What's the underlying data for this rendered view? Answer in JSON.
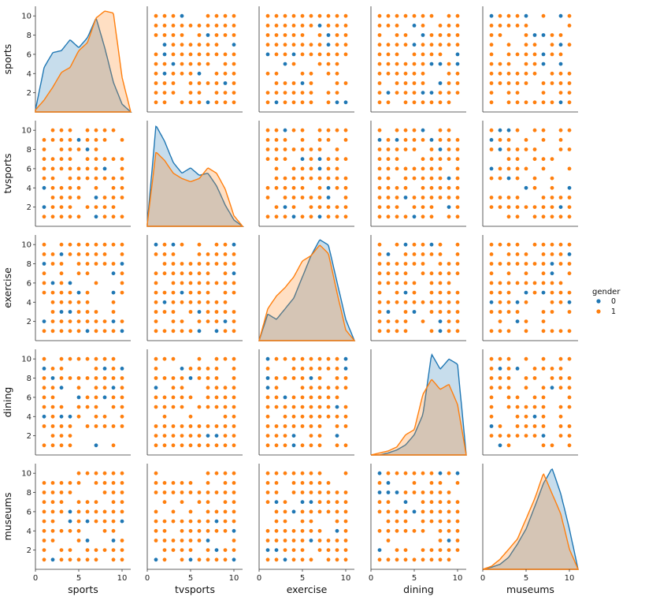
{
  "chart_data": {
    "type": "scatter",
    "title": "",
    "variables": [
      "sports",
      "tvsports",
      "exercise",
      "dining",
      "museums"
    ],
    "axis_range": [
      0,
      11
    ],
    "ticks": [
      0,
      5,
      10
    ],
    "y_ticks": [
      2,
      4,
      6,
      8,
      10
    ],
    "hue": "gender",
    "colors": {
      "0": "#1f77b4",
      "1": "#ff7f0e"
    },
    "legend": {
      "title": "gender",
      "placement": "center-right",
      "entries": [
        {
          "label": "0",
          "color": "#1f77b4"
        },
        {
          "label": "1",
          "color": "#ff7f0e"
        }
      ]
    },
    "diagonal_kde": {
      "sports": {
        "x": [
          0,
          1,
          2,
          3,
          4,
          5,
          6,
          7,
          8,
          9,
          10,
          11
        ],
        "series": [
          {
            "name": "0",
            "values": [
              0.02,
              0.45,
              0.6,
              0.62,
              0.73,
              0.65,
              0.75,
              0.95,
              0.65,
              0.3,
              0.08,
              0
            ]
          },
          {
            "name": "1",
            "values": [
              0.02,
              0.12,
              0.25,
              0.4,
              0.45,
              0.62,
              0.7,
              0.95,
              1.02,
              1.0,
              0.35,
              0
            ]
          }
        ]
      },
      "tvsports": {
        "x": [
          0,
          1,
          2,
          3,
          4,
          5,
          6,
          7,
          8,
          9,
          10,
          11
        ],
        "series": [
          {
            "name": "0",
            "values": [
              0.02,
              0.95,
              0.8,
              0.6,
              0.5,
              0.55,
              0.48,
              0.5,
              0.38,
              0.2,
              0.06,
              0
            ]
          },
          {
            "name": "1",
            "values": [
              0.02,
              0.7,
              0.62,
              0.5,
              0.45,
              0.42,
              0.45,
              0.55,
              0.5,
              0.35,
              0.1,
              0
            ]
          }
        ]
      },
      "exercise": {
        "x": [
          0,
          1,
          2,
          3,
          4,
          5,
          6,
          7,
          8,
          9,
          10,
          11
        ],
        "series": [
          {
            "name": "0",
            "values": [
              0,
              0.25,
              0.2,
              0.3,
              0.4,
              0.6,
              0.8,
              0.95,
              0.9,
              0.55,
              0.2,
              0
            ]
          },
          {
            "name": "1",
            "values": [
              0,
              0.3,
              0.42,
              0.5,
              0.6,
              0.75,
              0.8,
              0.9,
              0.82,
              0.45,
              0.1,
              0
            ]
          }
        ]
      },
      "dining": {
        "x": [
          0,
          1,
          2,
          3,
          4,
          5,
          6,
          7,
          8,
          9,
          10,
          11
        ],
        "series": [
          {
            "name": "0",
            "values": [
              0,
              0,
              0.02,
              0.05,
              0.1,
              0.2,
              0.4,
              1.0,
              0.85,
              0.95,
              0.9,
              0
            ]
          },
          {
            "name": "1",
            "values": [
              0,
              0.02,
              0.04,
              0.08,
              0.2,
              0.25,
              0.6,
              0.75,
              0.65,
              0.7,
              0.5,
              0
            ]
          }
        ]
      },
      "museums": {
        "x": [
          0,
          1,
          2,
          3,
          4,
          5,
          6,
          7,
          8,
          9,
          10,
          11
        ],
        "series": [
          {
            "name": "0",
            "values": [
              0,
              0.02,
              0.05,
              0.12,
              0.25,
              0.4,
              0.62,
              0.85,
              1.0,
              0.75,
              0.4,
              0
            ]
          },
          {
            "name": "1",
            "values": [
              0,
              0.03,
              0.1,
              0.2,
              0.3,
              0.5,
              0.7,
              0.95,
              0.75,
              0.55,
              0.2,
              0
            ]
          }
        ]
      }
    }
  }
}
